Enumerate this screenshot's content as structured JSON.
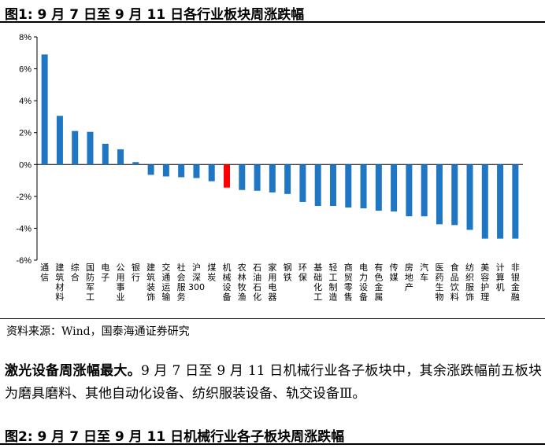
{
  "figure1": {
    "header": "图1: 9 月 7 日至 9 月 11 日各行业板块周涨跌幅"
  },
  "chart_data": {
    "type": "bar",
    "title": "",
    "xlabel": "",
    "ylabel": "",
    "ylim": [
      -6,
      8
    ],
    "yticks": [
      8,
      6,
      4,
      2,
      0,
      -2,
      -4,
      -6
    ],
    "ytick_labels": [
      "8%",
      "6%",
      "4%",
      "2%",
      "0%",
      "-2%",
      "-4%",
      "-6%"
    ],
    "unit": "%",
    "grid": false,
    "legend": "none",
    "colors": {
      "default": "#1f77c4",
      "highlight": "#ff0000"
    },
    "highlight_category": "机械设备",
    "categories": [
      "通信",
      "建筑材料",
      "综合",
      "国防军工",
      "电子",
      "公用事业",
      "银行",
      "建筑装饰",
      "交通运输",
      "社会服务",
      "沪深300",
      "煤炭",
      "机械设备",
      "农林牧渔",
      "石油石化",
      "家用电器",
      "钢铁",
      "环保",
      "基础化工",
      "轻工制造",
      "商贸零售",
      "电力设备",
      "有色金属",
      "传媒",
      "房地产",
      "汽车",
      "医药生物",
      "食品饮料",
      "纺织服饰",
      "美容护理",
      "计算机",
      "非银金融"
    ],
    "values": [
      6.9,
      3.05,
      2.1,
      2.05,
      1.3,
      0.95,
      0.15,
      -0.65,
      -0.75,
      -0.8,
      -0.85,
      -1.05,
      -1.45,
      -1.6,
      -1.65,
      -1.75,
      -1.85,
      -2.35,
      -2.6,
      -2.6,
      -2.7,
      -2.75,
      -2.9,
      -2.95,
      -3.25,
      -3.25,
      -3.75,
      -3.8,
      -4.1,
      -4.65,
      -4.65,
      -4.65
    ]
  },
  "source": "资料来源：Wind，国泰海通证券研究",
  "paragraph": {
    "lead": "激光设备周涨幅最大。",
    "body": "9 月 7 日至 9 月 11 日机械行业各子板块中，其余涨跌幅前五板块为磨具磨料、其他自动化设备、纺织服装设备、轨交设备Ⅲ。"
  },
  "figure2": {
    "header": "图2: 9 月 7 日至 9 月 11 日机械行业各子板块周涨跌幅"
  }
}
